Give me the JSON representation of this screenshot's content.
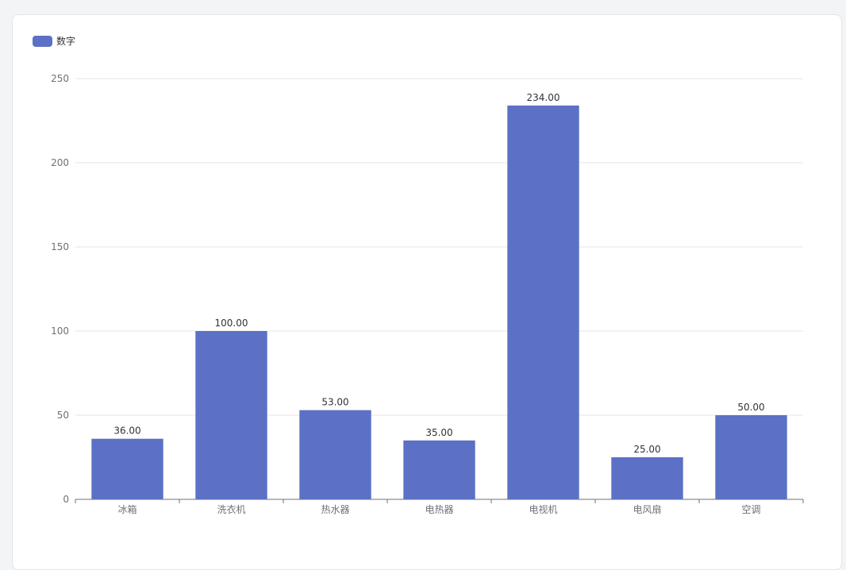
{
  "legend": {
    "label": "数字",
    "color": "#5c70c5"
  },
  "chart_data": {
    "type": "bar",
    "title": "",
    "xlabel": "",
    "ylabel": "",
    "categories": [
      "冰箱",
      "洗衣机",
      "热水器",
      "电热器",
      "电视机",
      "电风扇",
      "空调"
    ],
    "series": [
      {
        "name": "数字",
        "values": [
          36,
          100,
          53,
          35,
          234,
          25,
          50
        ],
        "labels": [
          "36.00",
          "100.00",
          "53.00",
          "35.00",
          "234.00",
          "25.00",
          "50.00"
        ],
        "color": "#5c70c5"
      }
    ],
    "ylim": [
      0,
      250
    ],
    "yticks": [
      0,
      50,
      100,
      150,
      200,
      250
    ],
    "grid": true,
    "legend_position": "top-left"
  }
}
